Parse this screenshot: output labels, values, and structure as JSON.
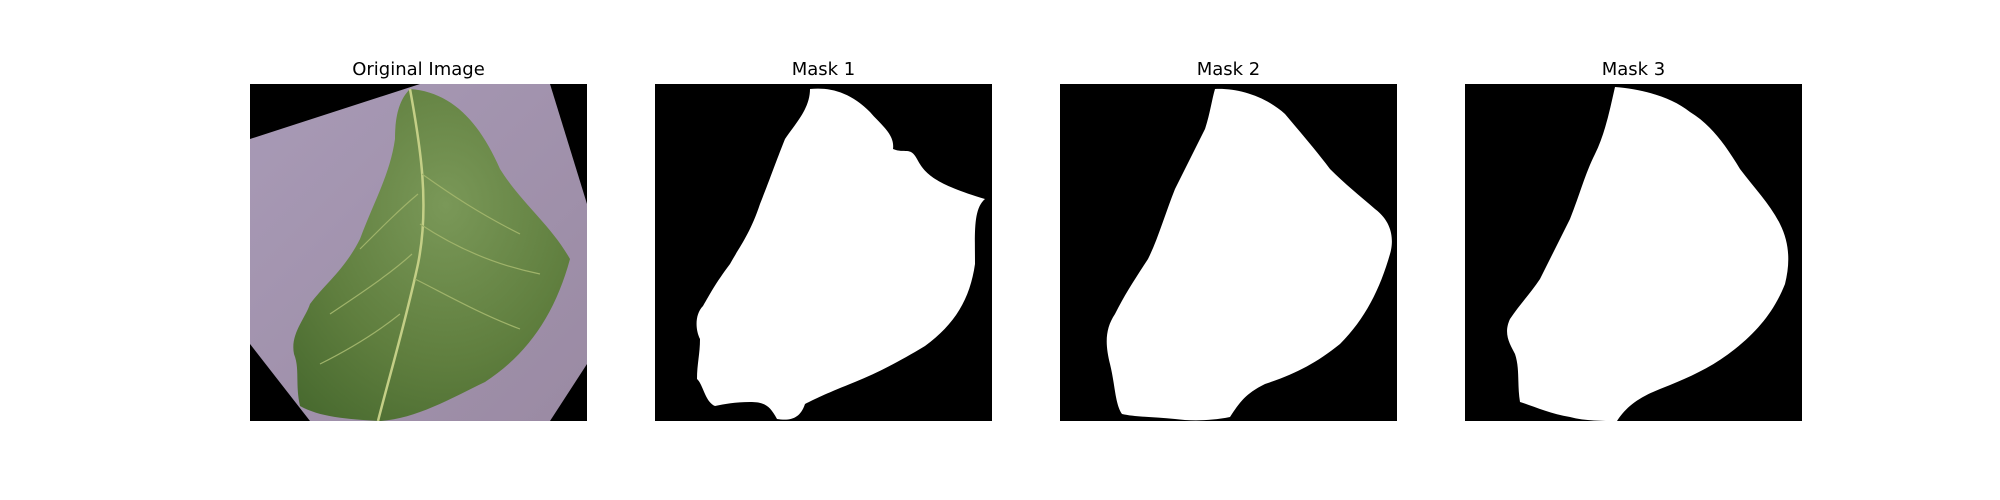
{
  "figure": {
    "panels": [
      {
        "title": "Original Image",
        "kind": "photo"
      },
      {
        "title": "Mask 1",
        "kind": "mask"
      },
      {
        "title": "Mask 2",
        "kind": "mask"
      },
      {
        "title": "Mask 3",
        "kind": "mask"
      }
    ]
  },
  "colors": {
    "mask_background": "#000000",
    "mask_foreground": "#ffffff",
    "photo_background": "#000000",
    "photo_board": "#9c8fa8",
    "leaf_fill": "#5f7d3f",
    "leaf_vein": "#b9c77b"
  }
}
